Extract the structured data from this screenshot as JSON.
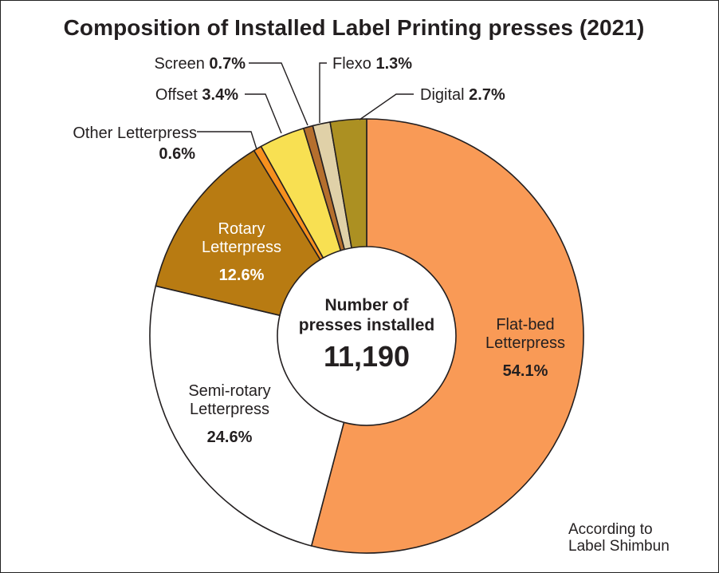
{
  "chart_data": {
    "type": "pie",
    "style": "donut",
    "title": "Composition of Installed Label Printing presses (2021)",
    "unit": "%",
    "center_label": {
      "lines": [
        "Number of",
        "presses installed"
      ],
      "value": "11,190"
    },
    "slices": [
      {
        "name_lines": [
          "Flat-bed",
          "Letterpress"
        ],
        "value": 54.1,
        "value_label": "54.1%",
        "color": "#f99a56",
        "label_color": "#231f20",
        "label_placement": "inside"
      },
      {
        "name_lines": [
          "Semi-rotary",
          "Letterpress"
        ],
        "value": 24.6,
        "value_label": "24.6%",
        "color": "#ffffff",
        "label_color": "#231f20",
        "label_placement": "inside"
      },
      {
        "name_lines": [
          "Rotary",
          "Letterpress"
        ],
        "value": 12.6,
        "value_label": "12.6%",
        "color": "#b87b12",
        "label_color": "#ffffff",
        "label_placement": "inside"
      },
      {
        "name_lines": [
          "Other Letterpress"
        ],
        "value": 0.6,
        "value_label": "0.6%",
        "color": "#f6901e",
        "label_color": "#231f20",
        "label_placement": "outside",
        "value_on_new_line": true
      },
      {
        "name_lines": [
          "Offset"
        ],
        "value": 3.4,
        "value_label": "3.4%",
        "color": "#f8e052",
        "label_color": "#231f20",
        "label_placement": "outside"
      },
      {
        "name_lines": [
          "Screen"
        ],
        "value": 0.7,
        "value_label": "0.7%",
        "color": "#b56f2d",
        "label_color": "#231f20",
        "label_placement": "outside"
      },
      {
        "name_lines": [
          "Flexo"
        ],
        "value": 1.3,
        "value_label": "1.3%",
        "color": "#e0d1a8",
        "label_color": "#231f20",
        "label_placement": "outside"
      },
      {
        "name_lines": [
          "Digital"
        ],
        "value": 2.7,
        "value_label": "2.7%",
        "color": "#ac9022",
        "label_color": "#231f20",
        "label_placement": "outside"
      }
    ],
    "start_angle": "12 o'clock",
    "direction": "clockwise",
    "legend": "none"
  },
  "source": {
    "lines": [
      "According to",
      "Label Shimbun"
    ]
  }
}
